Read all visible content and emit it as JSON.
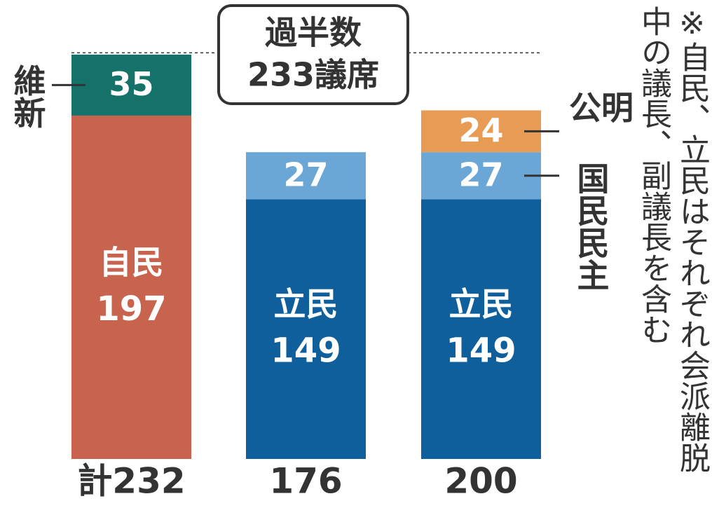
{
  "chart_data": {
    "type": "bar",
    "stacked": true,
    "categories": [
      null,
      null,
      null
    ],
    "series": [
      {
        "name": "自民",
        "color": "#c8634e",
        "values": [
          197,
          null,
          null
        ]
      },
      {
        "name": "立民",
        "color": "#0f5f9c",
        "values": [
          null,
          149,
          149
        ]
      },
      {
        "name": "維新",
        "color": "#14726a",
        "values": [
          35,
          null,
          null
        ]
      },
      {
        "name": "国民民主",
        "color": "#6aa6d6",
        "values": [
          null,
          27,
          27
        ]
      },
      {
        "name": "公明",
        "color": "#e79b55",
        "values": [
          null,
          null,
          24
        ]
      }
    ],
    "totals": [
      232,
      176,
      200
    ],
    "total_labels": [
      "計232",
      "176",
      "200"
    ],
    "threshold": {
      "value": 233,
      "label_lines": [
        "過半数",
        "233議席"
      ]
    },
    "ylim": [
      0,
      240
    ],
    "note_lines": [
      "※自民、立民はそれぞれ会派離脱",
      "中の議長、副議長を含む"
    ]
  }
}
